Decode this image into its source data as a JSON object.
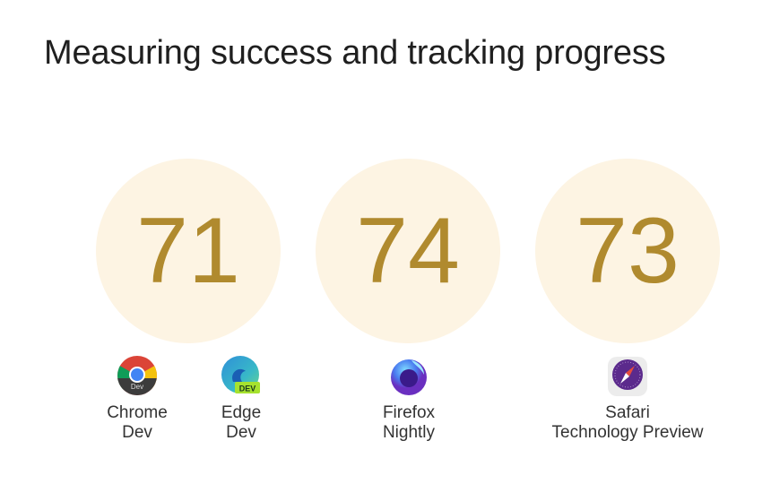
{
  "title": "Measuring success and tracking progress",
  "scores": [
    {
      "value": "71"
    },
    {
      "value": "74"
    },
    {
      "value": "73"
    }
  ],
  "browsers": [
    {
      "icon": "chrome-dev-icon",
      "line1": "Chrome",
      "line2": "Dev",
      "badge": "Dev"
    },
    {
      "icon": "edge-dev-icon",
      "line1": "Edge",
      "line2": "Dev",
      "badge": "DEV"
    },
    {
      "icon": "firefox-nightly-icon",
      "line1": "Firefox",
      "line2": "Nightly"
    },
    {
      "icon": "safari-technology-preview-icon",
      "line1": "Safari",
      "line2": "Technology Preview"
    }
  ],
  "colors": {
    "circle": "#fdf4e3",
    "number": "#b08a2e"
  }
}
